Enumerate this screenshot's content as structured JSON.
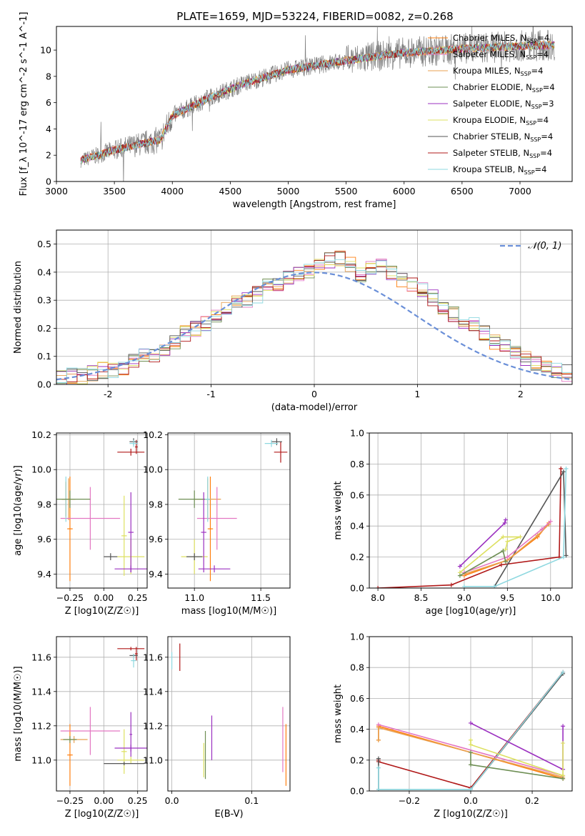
{
  "title": "PLATE=1659, MJD=53224, FIBERID=0082, z=0.268",
  "colors": {
    "chabrier_miles": "#ff7f0e",
    "salpeter_miles": "#e377c2",
    "kroupa_miles": "#e8a050",
    "chabrier_elodie": "#6e8f54",
    "salpeter_elodie": "#9b30c0",
    "kroupa_elodie": "#dde060",
    "chabrier_stelib": "#555555",
    "salpeter_stelib": "#b01818",
    "kroupa_stelib": "#8ed8e0",
    "data": "#808080",
    "gauss": "#6a8fd8"
  },
  "legend_entries": [
    {
      "label": "Chabrier MILES, N",
      "n": "4",
      "key": "chabrier_miles"
    },
    {
      "label": "Salpeter MILES, N",
      "n": "4",
      "key": "salpeter_miles"
    },
    {
      "label": "Kroupa MILES, N",
      "n": "4",
      "key": "kroupa_miles"
    },
    {
      "label": "Chabrier ELODIE, N",
      "n": "4",
      "key": "chabrier_elodie"
    },
    {
      "label": "Salpeter ELODIE, N",
      "n": "3",
      "key": "salpeter_elodie"
    },
    {
      "label": "Kroupa ELODIE, N",
      "n": "4",
      "key": "kroupa_elodie"
    },
    {
      "label": "Chabrier STELIB, N",
      "n": "4",
      "key": "chabrier_stelib"
    },
    {
      "label": "Salpeter STELIB, N",
      "n": "4",
      "key": "salpeter_stelib"
    },
    {
      "label": "Kroupa STELIB, N",
      "n": "4",
      "key": "kroupa_stelib"
    }
  ],
  "legend_sub": "SSP",
  "legend_gauss": "𝒩(0, 1)",
  "chart_data": [
    {
      "id": "spectrum",
      "type": "line",
      "xlabel": "wavelength [Angstrom, rest frame]",
      "ylabel": "Flux [f_λ 10^-17 erg cm^-2 s^-1 A^-1]",
      "xlim": [
        3000,
        7450
      ],
      "ylim": [
        0,
        11.8
      ],
      "xticks": [
        3000,
        3500,
        4000,
        4500,
        5000,
        5500,
        6000,
        6500,
        7000
      ],
      "yticks": [
        0,
        2,
        4,
        6,
        8,
        10
      ],
      "x_range_data": [
        3210,
        7300
      ],
      "continuum": {
        "x": [
          3210,
          3500,
          3900,
          4000,
          4300,
          4600,
          5000,
          5500,
          6000,
          6500,
          7000,
          7300
        ],
        "y": [
          1.6,
          2.4,
          3.2,
          5.0,
          6.3,
          7.4,
          8.5,
          9.2,
          9.8,
          10.1,
          10.3,
          10.4
        ]
      }
    },
    {
      "id": "residuals",
      "type": "histogram",
      "xlabel": "(data-model)/error",
      "ylabel": "Normed distribution",
      "xlim": [
        -2.5,
        2.5
      ],
      "ylim": [
        0,
        0.55
      ],
      "xticks": [
        -2,
        -1,
        0,
        1,
        2
      ],
      "yticks": [
        0.0,
        0.1,
        0.2,
        0.3,
        0.4,
        0.5
      ],
      "bin_width": 0.1,
      "bins_from": -2.5,
      "series_values": [
        [
          0.02,
          0.03,
          0.03,
          0.04,
          0.05,
          0.05,
          0.06,
          0.08,
          0.1,
          0.11,
          0.13,
          0.15,
          0.18,
          0.2,
          0.22,
          0.25,
          0.27,
          0.3,
          0.3,
          0.32,
          0.35,
          0.36,
          0.38,
          0.39,
          0.4,
          0.43,
          0.44,
          0.45,
          0.43,
          0.39,
          0.41,
          0.42,
          0.4,
          0.37,
          0.35,
          0.34,
          0.31,
          0.28,
          0.25,
          0.23,
          0.21,
          0.18,
          0.15,
          0.13,
          0.11,
          0.09,
          0.07,
          0.06,
          0.05,
          0.04
        ]
      ],
      "gauss": {
        "mu": 0,
        "sigma": 1
      }
    },
    {
      "id": "age_vs_Z",
      "type": "scatter",
      "xlabel": "Z [log10(Z/Z☉)]",
      "ylabel": "age  [log10(age/yr)]",
      "xlim": [
        -0.35,
        0.32
      ],
      "ylim": [
        9.32,
        10.21
      ],
      "xticks": [
        -0.25,
        0.0,
        0.25
      ],
      "xtick_labels": [
        "−0.25",
        "0.00",
        "0.25"
      ],
      "yticks": [
        9.4,
        9.6,
        9.8,
        10.0,
        10.2
      ],
      "ytick_labels": [
        "9.4",
        "9.6",
        "9.8",
        "10.0",
        "10.2"
      ],
      "points": [
        {
          "key": "chabrier_miles",
          "x": -0.28,
          "y": 9.83,
          "xerr": 0.03,
          "yerr": 0.1
        },
        {
          "key": "kroupa_miles",
          "x": -0.26,
          "y": 9.83,
          "xerr": 0.05,
          "yerr": 0.12
        },
        {
          "key": "chabrier_miles",
          "x": -0.25,
          "y": 9.66,
          "xerr": 0.02,
          "yerr": 0.3
        },
        {
          "key": "salpeter_miles",
          "x": -0.1,
          "y": 9.72,
          "xerr": 0.22,
          "yerr": 0.18
        },
        {
          "key": "kroupa_stelib",
          "x": -0.28,
          "y": 9.83,
          "xerr": 0.02,
          "yerr": 0.13
        },
        {
          "key": "chabrier_elodie",
          "x": -0.25,
          "y": 9.83,
          "xerr": 0.15,
          "yerr": 0.05
        },
        {
          "key": "kroupa_elodie",
          "x": 0.2,
          "y": 9.5,
          "xerr": 0.1,
          "yerr": 0.1
        },
        {
          "key": "kroupa_elodie",
          "x": 0.15,
          "y": 9.62,
          "xerr": 0.02,
          "yerr": 0.23
        },
        {
          "key": "chabrier_stelib",
          "x": 0.05,
          "y": 9.5,
          "xerr": 0.05,
          "yerr": 0.02
        },
        {
          "key": "salpeter_elodie",
          "x": 0.2,
          "y": 9.43,
          "xerr": 0.12,
          "yerr": 0.02
        },
        {
          "key": "salpeter_elodie",
          "x": 0.2,
          "y": 9.64,
          "xerr": 0.02,
          "yerr": 0.23
        },
        {
          "key": "salpeter_stelib",
          "x": 0.2,
          "y": 10.1,
          "xerr": 0.1,
          "yerr": 0.02
        },
        {
          "key": "salpeter_stelib",
          "x": 0.24,
          "y": 10.13,
          "xerr": 0.01,
          "yerr": 0.04
        },
        {
          "key": "chabrier_stelib",
          "x": 0.22,
          "y": 10.16,
          "xerr": 0.03,
          "yerr": 0.02
        },
        {
          "key": "kroupa_stelib",
          "x": 0.22,
          "y": 10.15,
          "xerr": 0.03,
          "yerr": 0.02
        }
      ]
    },
    {
      "id": "age_vs_mass",
      "type": "scatter",
      "xlabel": "mass [log10(M/M☉)]",
      "ylabel": "",
      "xlim": [
        10.8,
        11.72
      ],
      "ylim": [
        9.32,
        10.21
      ],
      "xticks": [
        11.0,
        11.5
      ],
      "xtick_labels": [
        "11.0",
        "11.5"
      ],
      "yticks": [
        9.4,
        9.6,
        9.8,
        10.0,
        10.2
      ],
      "ytick_labels": [
        "9.4",
        "9.6",
        "9.8",
        "10.0",
        "10.2"
      ],
      "points": [
        {
          "key": "chabrier_miles",
          "x": 11.12,
          "y": 9.66,
          "xerr": 0.02,
          "yerr": 0.3
        },
        {
          "key": "kroupa_miles",
          "x": 11.1,
          "y": 9.83,
          "xerr": 0.1,
          "yerr": 0.12
        },
        {
          "key": "salpeter_miles",
          "x": 11.17,
          "y": 9.72,
          "xerr": 0.15,
          "yerr": 0.18
        },
        {
          "key": "chabrier_elodie",
          "x": 11.0,
          "y": 9.83,
          "xerr": 0.12,
          "yerr": 0.05
        },
        {
          "key": "kroupa_elodie",
          "x": 11.0,
          "y": 9.5,
          "xerr": 0.1,
          "yerr": 0.1
        },
        {
          "key": "salpeter_elodie",
          "x": 11.07,
          "y": 9.64,
          "xerr": 0.02,
          "yerr": 0.23
        },
        {
          "key": "salpeter_elodie",
          "x": 11.15,
          "y": 9.43,
          "xerr": 0.12,
          "yerr": 0.02
        },
        {
          "key": "kroupa_stelib",
          "x": 11.1,
          "y": 9.83,
          "xerr": 0.02,
          "yerr": 0.13
        },
        {
          "key": "chabrier_stelib",
          "x": 11.0,
          "y": 9.5,
          "xerr": 0.06,
          "yerr": 0.02
        },
        {
          "key": "salpeter_stelib",
          "x": 11.65,
          "y": 10.1,
          "xerr": 0.05,
          "yerr": 0.06
        },
        {
          "key": "chabrier_stelib",
          "x": 11.62,
          "y": 10.16,
          "xerr": 0.04,
          "yerr": 0.02
        },
        {
          "key": "kroupa_stelib",
          "x": 11.58,
          "y": 10.15,
          "xerr": 0.05,
          "yerr": 0.02
        }
      ]
    },
    {
      "id": "weight_vs_age",
      "type": "line",
      "xlabel": "age  [log10(age/yr)]",
      "ylabel": "mass weight",
      "xlim": [
        7.9,
        10.25
      ],
      "ylim": [
        0,
        1
      ],
      "xticks": [
        8.0,
        8.5,
        9.0,
        9.5,
        10.0
      ],
      "xtick_labels": [
        "8.0",
        "8.5",
        "9.0",
        "9.5",
        "10.0"
      ],
      "yticks": [
        0,
        0.2,
        0.4,
        0.6,
        0.8,
        1.0
      ],
      "ytick_labels": [
        "0.0",
        "0.2",
        "0.4",
        "0.6",
        "0.8",
        "1.0"
      ],
      "series": [
        {
          "key": "salpeter_stelib",
          "x": [
            8.0,
            8.85,
            9.43,
            10.1,
            10.12
          ],
          "y": [
            0.0,
            0.02,
            0.15,
            0.2,
            0.77
          ]
        },
        {
          "key": "chabrier_stelib",
          "x": [
            9.35,
            10.15,
            10.18
          ],
          "y": [
            0.01,
            0.75,
            0.21
          ]
        },
        {
          "key": "kroupa_stelib",
          "x": [
            9.0,
            9.35,
            10.15,
            10.18
          ],
          "y": [
            0.01,
            0.01,
            0.2,
            0.77
          ]
        },
        {
          "key": "chabrier_miles",
          "x": [
            9.0,
            9.5,
            9.85,
            9.98
          ],
          "y": [
            0.08,
            0.18,
            0.33,
            0.42
          ]
        },
        {
          "key": "kroupa_miles",
          "x": [
            9.0,
            9.5,
            9.85,
            9.98
          ],
          "y": [
            0.09,
            0.18,
            0.34,
            0.41
          ]
        },
        {
          "key": "salpeter_miles",
          "x": [
            9.0,
            9.5,
            9.9,
            10.0
          ],
          "y": [
            0.1,
            0.2,
            0.38,
            0.43
          ]
        },
        {
          "key": "salpeter_elodie",
          "x": [
            8.95,
            9.47,
            9.48
          ],
          "y": [
            0.14,
            0.42,
            0.44
          ]
        },
        {
          "key": "kroupa_elodie",
          "x": [
            8.95,
            9.45,
            9.65,
            9.5,
            9.48
          ],
          "y": [
            0.1,
            0.33,
            0.33,
            0.3,
            0.25
          ]
        },
        {
          "key": "chabrier_elodie",
          "x": [
            8.95,
            9.45,
            9.48
          ],
          "y": [
            0.08,
            0.24,
            0.17
          ]
        }
      ]
    },
    {
      "id": "mass_vs_Z",
      "type": "scatter",
      "xlabel": "Z [log10(Z/Z☉)]",
      "ylabel": "mass [log10(M/M☉)]",
      "xlim": [
        -0.35,
        0.32
      ],
      "ylim": [
        10.82,
        11.72
      ],
      "xticks": [
        -0.25,
        0.0,
        0.25
      ],
      "xtick_labels": [
        "−0.25",
        "0.00",
        "0.25"
      ],
      "yticks": [
        11.0,
        11.2,
        11.4,
        11.6
      ],
      "ytick_labels": [
        "11.0",
        "11.2",
        "11.4",
        "11.6"
      ],
      "points": [
        {
          "key": "chabrier_miles",
          "x": -0.25,
          "y": 11.03,
          "xerr": 0.02,
          "yerr": 0.18
        },
        {
          "key": "kroupa_miles",
          "x": -0.22,
          "y": 11.12,
          "xerr": 0.1,
          "yerr": 0.02
        },
        {
          "key": "salpeter_miles",
          "x": -0.1,
          "y": 11.17,
          "xerr": 0.22,
          "yerr": 0.14
        },
        {
          "key": "chabrier_elodie",
          "x": -0.25,
          "y": 11.12,
          "xerr": 0.05,
          "yerr": 0.02
        },
        {
          "key": "kroupa_elodie",
          "x": 0.2,
          "y": 11.0,
          "xerr": 0.1,
          "yerr": 0.02
        },
        {
          "key": "kroupa_elodie",
          "x": 0.15,
          "y": 11.05,
          "xerr": 0.02,
          "yerr": 0.13
        },
        {
          "key": "chabrier_stelib",
          "x": 0.15,
          "y": 10.98,
          "xerr": 0.15,
          "yerr": 0.01
        },
        {
          "key": "salpeter_elodie",
          "x": 0.2,
          "y": 11.07,
          "xerr": 0.12,
          "yerr": 0.02
        },
        {
          "key": "salpeter_elodie",
          "x": 0.2,
          "y": 11.15,
          "xerr": 0.01,
          "yerr": 0.13
        },
        {
          "key": "salpeter_stelib",
          "x": 0.2,
          "y": 11.65,
          "xerr": 0.1,
          "yerr": 0.01
        },
        {
          "key": "salpeter_stelib",
          "x": 0.24,
          "y": 11.62,
          "xerr": 0.01,
          "yerr": 0.04
        },
        {
          "key": "chabrier_stelib",
          "x": 0.22,
          "y": 11.61,
          "xerr": 0.03,
          "yerr": 0.01
        },
        {
          "key": "kroupa_stelib",
          "x": 0.22,
          "y": 11.58,
          "xerr": 0.02,
          "yerr": 0.04
        }
      ]
    },
    {
      "id": "mass_vs_ebv",
      "type": "scatter",
      "xlabel": "E(B-V)",
      "ylabel": "",
      "xlim": [
        -0.005,
        0.148
      ],
      "ylim": [
        10.82,
        11.72
      ],
      "xticks": [
        0.0,
        0.1
      ],
      "xtick_labels": [
        "0.0",
        "0.1"
      ],
      "yticks": [
        11.0,
        11.2,
        11.4,
        11.6
      ],
      "ytick_labels": [
        "11.0",
        "11.2",
        "11.4",
        "11.6"
      ],
      "points": [
        {
          "key": "salpeter_stelib",
          "x": 0.01,
          "y": 11.6,
          "xerr": 0.0,
          "yerr": 0.08
        },
        {
          "key": "kroupa_stelib",
          "x": 0.0,
          "y": 11.58,
          "xerr": 0.0,
          "yerr": 0.05
        },
        {
          "key": "salpeter_elodie",
          "x": 0.05,
          "y": 11.13,
          "xerr": 0.0,
          "yerr": 0.13
        },
        {
          "key": "kroupa_elodie",
          "x": 0.04,
          "y": 11.0,
          "xerr": 0.0,
          "yerr": 0.1
        },
        {
          "key": "chabrier_elodie",
          "x": 0.042,
          "y": 11.03,
          "xerr": 0.0,
          "yerr": 0.14
        },
        {
          "key": "salpeter_miles",
          "x": 0.139,
          "y": 11.12,
          "xerr": 0.0,
          "yerr": 0.19
        },
        {
          "key": "chabrier_miles",
          "x": 0.143,
          "y": 11.03,
          "xerr": 0.0,
          "yerr": 0.18
        }
      ]
    },
    {
      "id": "weight_vs_Z",
      "type": "line",
      "xlabel": "Z [log10(Z/Z☉)]",
      "ylabel": "mass weight",
      "xlim": [
        -0.33,
        0.33
      ],
      "ylim": [
        0,
        1
      ],
      "xticks": [
        -0.2,
        0.0,
        0.2
      ],
      "xtick_labels": [
        "−0.2",
        "0.0",
        "0.2"
      ],
      "yticks": [
        0,
        0.2,
        0.4,
        0.6,
        0.8,
        1.0
      ],
      "ytick_labels": [
        "0.0",
        "0.2",
        "0.4",
        "0.6",
        "0.8",
        "1.0"
      ],
      "series": [
        {
          "key": "salpeter_stelib",
          "x": [
            -0.3,
            -0.3,
            0.0,
            0.3
          ],
          "y": [
            0.2,
            0.19,
            0.02,
            0.77
          ]
        },
        {
          "key": "chabrier_stelib",
          "x": [
            -0.3,
            -0.3,
            0.0,
            0.3
          ],
          "y": [
            0.21,
            0.01,
            0.01,
            0.76
          ]
        },
        {
          "key": "kroupa_stelib",
          "x": [
            -0.3,
            -0.3,
            0.0,
            0.3
          ],
          "y": [
            0.15,
            0.01,
            0.01,
            0.77
          ]
        },
        {
          "key": "chabrier_miles",
          "x": [
            -0.3,
            -0.3,
            0.3
          ],
          "y": [
            0.33,
            0.42,
            0.08
          ]
        },
        {
          "key": "kroupa_miles",
          "x": [
            -0.3,
            -0.3,
            0.3
          ],
          "y": [
            0.33,
            0.41,
            0.09
          ]
        },
        {
          "key": "salpeter_miles",
          "x": [
            -0.3,
            0.3
          ],
          "y": [
            0.43,
            0.1
          ]
        },
        {
          "key": "salpeter_elodie",
          "x": [
            0.0,
            0.3,
            0.3
          ],
          "y": [
            0.44,
            0.14,
            0.42
          ]
        },
        {
          "key": "kroupa_elodie",
          "x": [
            0.0,
            0.0,
            0.3,
            0.3
          ],
          "y": [
            0.33,
            0.3,
            0.1,
            0.31
          ]
        },
        {
          "key": "chabrier_elodie",
          "x": [
            0.0,
            0.0,
            0.3
          ],
          "y": [
            0.25,
            0.17,
            0.08
          ]
        }
      ]
    }
  ]
}
